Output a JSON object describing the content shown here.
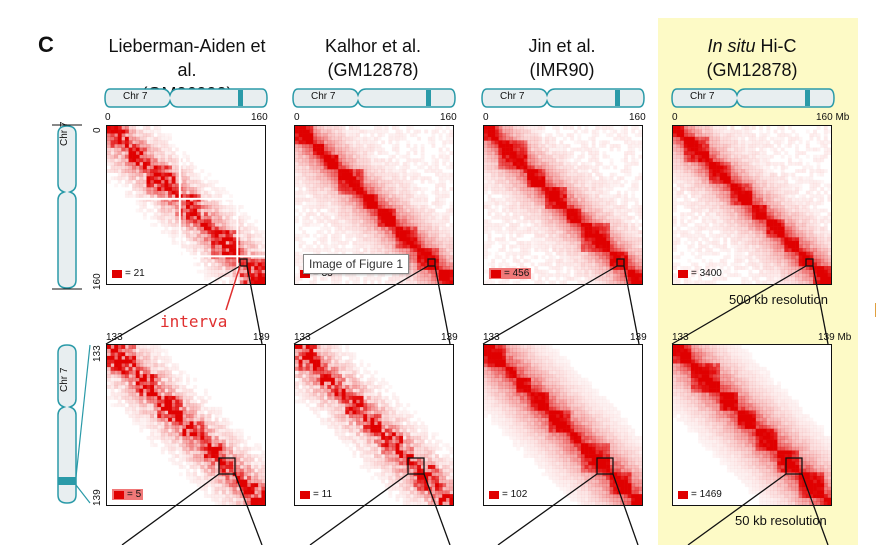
{
  "figure": {
    "panel_letter": "C",
    "columns": [
      {
        "title_a": "Lieberman-Aiden et al.",
        "title_b": "(GM06990)",
        "chr_label": "Chr 7",
        "axis_start": "0",
        "axis_end": "160",
        "legend_top": "= 21",
        "legend_bottom": "= 5",
        "zoom_start": "133",
        "zoom_end": "139"
      },
      {
        "title_a": "Kalhor et al.",
        "title_b": "(GM12878)",
        "chr_label": "Chr 7",
        "axis_start": "0",
        "axis_end": "160",
        "legend_top": "= 33",
        "legend_bottom": "= 11",
        "zoom_start": "133",
        "zoom_end": "139"
      },
      {
        "title_a": "Jin et al.",
        "title_b": "(IMR90)",
        "chr_label": "Chr 7",
        "axis_start": "0",
        "axis_end": "160",
        "legend_top": "= 456",
        "legend_bottom": "= 102",
        "zoom_start": "133",
        "zoom_end": "139"
      },
      {
        "title_a_italic": "In situ",
        "title_a_rest": " Hi-C",
        "title_b": "(GM12878)",
        "chr_label": "Chr 7",
        "axis_start": "0",
        "axis_end": "160 Mb",
        "legend_top": "= 3400",
        "legend_bottom": "= 1469",
        "zoom_start": "133",
        "zoom_end": "139 Mb"
      }
    ],
    "row_labels": {
      "top": {
        "chr_label": "Chr 7",
        "start": "0",
        "end": "160"
      },
      "bottom": {
        "chr_label": "Chr 7",
        "start": "133",
        "end": "139"
      }
    },
    "resolution_top": "500 kb resolution",
    "resolution_bottom": "50 kb resolution",
    "tooltip": "Image of Figure 1",
    "annotation": "interva",
    "colors": {
      "red": "#e00000",
      "teal": "#2a9aa8",
      "highlight": "#fdfac6"
    }
  }
}
